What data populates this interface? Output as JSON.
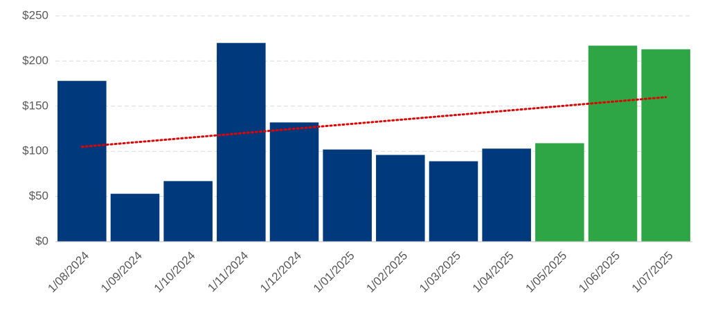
{
  "chart_data": {
    "type": "bar",
    "categories": [
      "1/08/2024",
      "1/09/2024",
      "1/10/2024",
      "1/11/2024",
      "1/12/2024",
      "1/01/2025",
      "1/02/2025",
      "1/03/2025",
      "1/04/2025",
      "1/05/2025",
      "1/06/2025",
      "1/07/2025"
    ],
    "values": [
      178,
      53,
      67,
      220,
      132,
      102,
      96,
      89,
      103,
      109,
      217,
      213
    ],
    "colors": [
      "#003a7d",
      "#003a7d",
      "#003a7d",
      "#003a7d",
      "#003a7d",
      "#003a7d",
      "#003a7d",
      "#003a7d",
      "#003a7d",
      "#2ea646",
      "#2ea646",
      "#2ea646"
    ],
    "trendline": {
      "color": "#e00000",
      "values": [
        105,
        160
      ]
    },
    "ylim": [
      0,
      250
    ],
    "yticks": [
      {
        "value": 0,
        "label": "$0"
      },
      {
        "value": 50,
        "label": "$50"
      },
      {
        "value": 100,
        "label": "$100"
      },
      {
        "value": 150,
        "label": "$150"
      },
      {
        "value": 200,
        "label": "$200"
      },
      {
        "value": 250,
        "label": "$250"
      }
    ],
    "grid": true
  }
}
